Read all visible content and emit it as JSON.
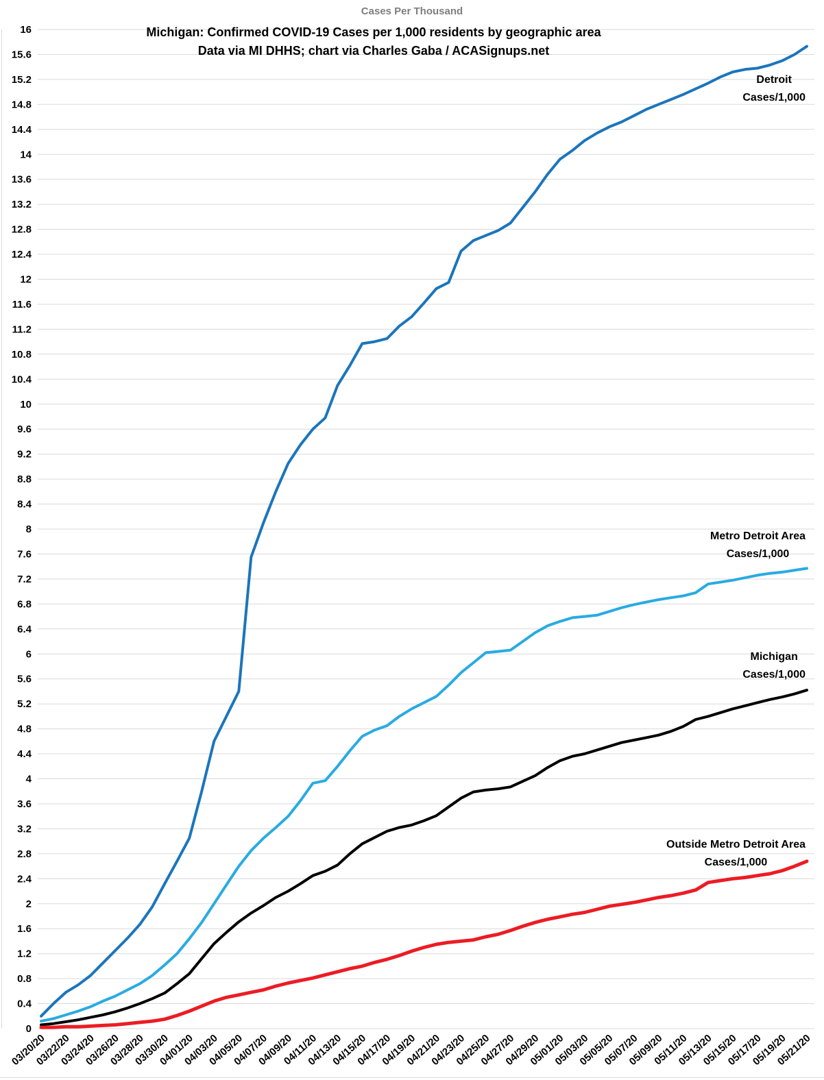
{
  "header": {
    "axis_title": "Cases Per Thousand",
    "title_line1": "Michigan: Confirmed COVID-19 Cases per 1,000 residents by geographic area",
    "title_line2": "Data via MI DHHS; chart via Charles Gaba / ACASignups.net"
  },
  "chart_data": {
    "type": "line",
    "title": "Michigan: Confirmed COVID-19 Cases per 1,000 residents by geographic area",
    "subtitle": "Data via MI DHHS; chart via Charles Gaba / ACASignups.net",
    "ylabel": "Cases Per Thousand",
    "xlabel": "",
    "ylim": [
      0,
      16
    ],
    "y_tick_step": 0.4,
    "grid": "horizontal",
    "grid_color": "#D9D9D9",
    "axis_text_color": "#000000",
    "legend_position": "inline-labels-right",
    "y_ticks": [
      "0",
      "0.4",
      "0.8",
      "1.2",
      "1.6",
      "2",
      "2.4",
      "2.8",
      "3.2",
      "3.6",
      "4",
      "4.4",
      "4.8",
      "5.2",
      "5.6",
      "6",
      "6.4",
      "6.8",
      "7.2",
      "7.6",
      "8",
      "8.4",
      "8.8",
      "9.2",
      "9.6",
      "10",
      "10.4",
      "10.8",
      "11.2",
      "11.6",
      "12",
      "12.4",
      "12.8",
      "13.2",
      "13.6",
      "14",
      "14.4",
      "14.8",
      "15.2",
      "15.6",
      "16"
    ],
    "x": [
      "03/20/20",
      "03/21/20",
      "03/22/20",
      "03/23/20",
      "03/24/20",
      "03/25/20",
      "03/26/20",
      "03/27/20",
      "03/28/20",
      "03/29/20",
      "03/30/20",
      "03/31/20",
      "04/01/20",
      "04/02/20",
      "04/03/20",
      "04/04/20",
      "04/05/20",
      "04/06/20",
      "04/07/20",
      "04/08/20",
      "04/09/20",
      "04/10/20",
      "04/11/20",
      "04/12/20",
      "04/13/20",
      "04/14/20",
      "04/15/20",
      "04/16/20",
      "04/17/20",
      "04/18/20",
      "04/19/20",
      "04/20/20",
      "04/21/20",
      "04/22/20",
      "04/23/20",
      "04/24/20",
      "04/25/20",
      "04/26/20",
      "04/27/20",
      "04/28/20",
      "04/29/20",
      "04/30/20",
      "05/01/20",
      "05/02/20",
      "05/03/20",
      "05/04/20",
      "05/05/20",
      "05/06/20",
      "05/07/20",
      "05/08/20",
      "05/09/20",
      "05/10/20",
      "05/11/20",
      "05/12/20",
      "05/13/20",
      "05/14/20",
      "05/15/20",
      "05/16/20",
      "05/17/20",
      "05/18/20",
      "05/19/20",
      "05/20/20",
      "05/21/20"
    ],
    "x_tick_labels": [
      "03/20/20",
      "03/22/20",
      "03/24/20",
      "03/26/20",
      "03/28/20",
      "03/30/20",
      "04/01/20",
      "04/03/20",
      "04/05/20",
      "04/07/20",
      "04/09/20",
      "04/11/20",
      "04/13/20",
      "04/15/20",
      "04/17/20",
      "04/19/20",
      "04/21/20",
      "04/23/20",
      "04/25/20",
      "04/27/20",
      "04/29/20",
      "05/01/20",
      "05/03/20",
      "05/05/20",
      "05/07/20",
      "05/09/20",
      "05/11/20",
      "05/13/20",
      "05/15/20",
      "05/17/20",
      "05/19/20",
      "05/21/20"
    ],
    "series": [
      {
        "id": "detroit",
        "name": "Detroit Cases/1,000",
        "label_line1": "Detroit",
        "label_line2": "Cases/1,000",
        "color": "#1B75BC",
        "values": [
          0.2,
          0.4,
          0.58,
          0.7,
          0.85,
          1.05,
          1.25,
          1.45,
          1.67,
          1.95,
          2.32,
          2.68,
          3.05,
          3.8,
          4.6,
          5.0,
          5.4,
          7.55,
          8.1,
          8.6,
          9.05,
          9.35,
          9.6,
          9.78,
          10.3,
          10.62,
          10.97,
          11.0,
          11.05,
          11.25,
          11.4,
          11.62,
          11.85,
          11.95,
          12.45,
          12.62,
          12.7,
          12.78,
          12.9,
          13.15,
          13.4,
          13.68,
          13.92,
          14.06,
          14.22,
          14.34,
          14.44,
          14.52,
          14.62,
          14.72,
          14.8,
          14.88,
          14.96,
          15.05,
          15.14,
          15.24,
          15.32,
          15.36,
          15.38,
          15.43,
          15.5,
          15.6,
          15.73
        ]
      },
      {
        "id": "metro-detroit",
        "name": "Metro Detroit Area Cases/1,000",
        "label_line1": "Metro Detroit Area",
        "label_line2": "Cases/1,000",
        "color": "#29ABE2",
        "values": [
          0.12,
          0.16,
          0.22,
          0.28,
          0.35,
          0.44,
          0.52,
          0.62,
          0.72,
          0.85,
          1.02,
          1.2,
          1.44,
          1.7,
          2.0,
          2.3,
          2.6,
          2.85,
          3.05,
          3.22,
          3.4,
          3.65,
          3.93,
          3.97,
          4.2,
          4.45,
          4.68,
          4.78,
          4.85,
          5.0,
          5.12,
          5.22,
          5.32,
          5.5,
          5.7,
          5.86,
          6.02,
          6.04,
          6.06,
          6.2,
          6.34,
          6.45,
          6.52,
          6.58,
          6.6,
          6.62,
          6.68,
          6.74,
          6.79,
          6.83,
          6.87,
          6.9,
          6.93,
          6.98,
          7.12,
          7.15,
          7.18,
          7.22,
          7.26,
          7.29,
          7.31,
          7.34,
          7.37
        ]
      },
      {
        "id": "michigan",
        "name": "Michigan Cases/1,000",
        "label_line1": "Michigan",
        "label_line2": "Cases/1,000",
        "color": "#000000",
        "values": [
          0.06,
          0.08,
          0.11,
          0.14,
          0.18,
          0.22,
          0.27,
          0.33,
          0.4,
          0.48,
          0.57,
          0.72,
          0.88,
          1.12,
          1.36,
          1.54,
          1.71,
          1.85,
          1.97,
          2.1,
          2.2,
          2.32,
          2.45,
          2.52,
          2.62,
          2.8,
          2.96,
          3.06,
          3.16,
          3.22,
          3.26,
          3.33,
          3.41,
          3.55,
          3.69,
          3.79,
          3.82,
          3.84,
          3.87,
          3.96,
          4.05,
          4.18,
          4.29,
          4.36,
          4.4,
          4.46,
          4.52,
          4.58,
          4.62,
          4.66,
          4.7,
          4.76,
          4.84,
          4.95,
          5.0,
          5.06,
          5.12,
          5.17,
          5.22,
          5.27,
          5.31,
          5.36,
          5.42
        ]
      },
      {
        "id": "outside-metro-detroit",
        "name": "Outside Metro Detroit Area Cases/1,000",
        "label_line1": "Outside Metro Detroit Area",
        "label_line2": "Cases/1,000",
        "color": "#EC1C24",
        "values": [
          0.02,
          0.02,
          0.03,
          0.03,
          0.04,
          0.05,
          0.06,
          0.08,
          0.1,
          0.12,
          0.15,
          0.21,
          0.28,
          0.36,
          0.44,
          0.5,
          0.54,
          0.58,
          0.62,
          0.68,
          0.73,
          0.77,
          0.81,
          0.86,
          0.91,
          0.96,
          1.0,
          1.06,
          1.11,
          1.17,
          1.24,
          1.3,
          1.35,
          1.38,
          1.4,
          1.42,
          1.47,
          1.51,
          1.57,
          1.64,
          1.7,
          1.75,
          1.79,
          1.83,
          1.86,
          1.91,
          1.96,
          1.99,
          2.02,
          2.06,
          2.1,
          2.13,
          2.17,
          2.22,
          2.34,
          2.37,
          2.4,
          2.42,
          2.45,
          2.48,
          2.53,
          2.6,
          2.68
        ]
      }
    ]
  }
}
